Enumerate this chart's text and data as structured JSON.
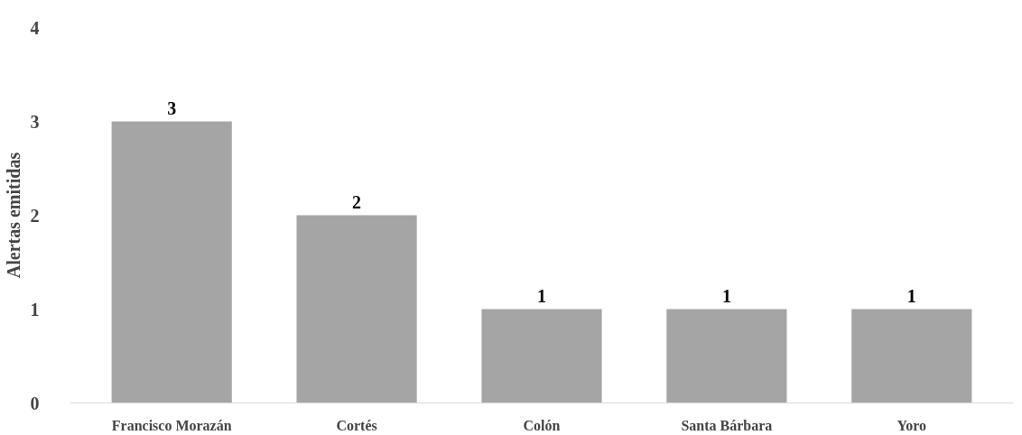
{
  "chart_data": {
    "type": "bar",
    "ylabel": "Alertas emitidas",
    "categories": [
      "Francisco Morazán",
      "Cortés",
      "Colón",
      "Santa Bárbara",
      "Yoro"
    ],
    "values": [
      3,
      2,
      1,
      1,
      1
    ],
    "color": "#a5a5a5",
    "ylim": [
      0,
      4
    ],
    "yticks": [
      0,
      1,
      2,
      3,
      4
    ],
    "grid": false,
    "data_labels": true
  }
}
